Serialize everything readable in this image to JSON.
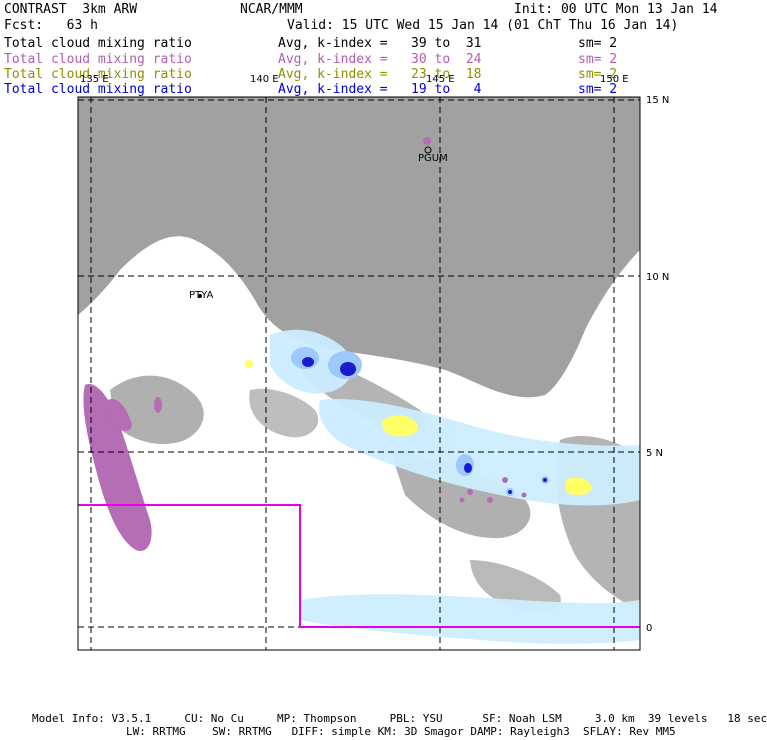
{
  "header": {
    "title": "CONTRAST  3km ARW",
    "org": "NCAR/MMM",
    "init": "Init: 00 UTC Mon 13 Jan 14",
    "fcst": "Fcst:   63 h",
    "valid": "Valid: 15 UTC Wed 15 Jan 14 (01 ChT Thu 16 Jan 14)"
  },
  "fields": [
    {
      "name": "Total cloud mixing ratio",
      "range": "Avg, k-index =   39 to  31",
      "sm": "sm= 2",
      "color": "#000000"
    },
    {
      "name": "Total cloud mixing ratio",
      "range": "Avg, k-index =   30 to  24",
      "sm": "sm= 2",
      "color": "#b05fb0"
    },
    {
      "name": "Total cloud mixing ratio",
      "range": "Avg, k-index =   23 to  18",
      "sm": "sm= 2",
      "color": "#8f8f00"
    },
    {
      "name": "Total cloud mixing ratio",
      "range": "Avg, k-index =   19 to   4",
      "sm": "sm= 2",
      "color": "#0000e0"
    }
  ],
  "map": {
    "lon_labels": [
      "135 E",
      "140 E",
      "145 E",
      "150 E"
    ],
    "lat_labels": [
      "15 N",
      "10 N",
      "5 N",
      "0"
    ],
    "station_labels": [
      "PGUM",
      "PTYA"
    ],
    "domain_box_color": "#e600e6",
    "colors": {
      "high_cloud": "#9c9c9c",
      "mid_cloud": "#b56db5",
      "low_cloud": "#ffff66",
      "very_low_cloud": "#cceeff",
      "deep_blue": "#1a1ad0"
    }
  },
  "footer": {
    "line1": "Model Info: V3.5.1     CU: No Cu     MP: Thompson     PBL: YSU      SF: Noah LSM     3.0 km  39 levels   18 sec",
    "line2": "LW: RRTMG    SW: RRTMG   DIFF: simple KM: 3D Smagor DAMP: Rayleigh3  SFLAY: Rev MM5"
  }
}
